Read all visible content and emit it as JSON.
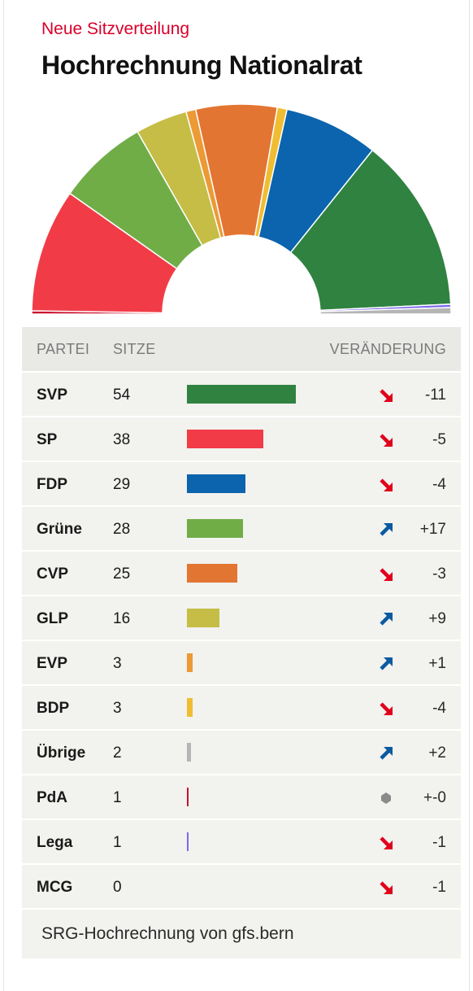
{
  "header": {
    "kicker": "Neue Sitzverteilung",
    "title": "Hochrechnung Nationalrat"
  },
  "table": {
    "col_party": "PARTEI",
    "col_seats": "SITZE",
    "col_change": "VERÄNDERUNG"
  },
  "footer": {
    "source": "SRG-Hochrechnung von gfs.bern"
  },
  "colors": {
    "up_arrow": "#0a5aa0",
    "down_arrow": "#e0001b",
    "neutral": "#8a8a8a"
  },
  "chart_data": {
    "type": "bar",
    "companion_chart": "parliament semicircle (hemicycle), seats arranged left to right",
    "total_seats": 200,
    "series": [
      {
        "name": "Sitze",
        "values": [
          54,
          38,
          29,
          28,
          25,
          16,
          3,
          3,
          2,
          1,
          1,
          0
        ]
      }
    ],
    "rows": [
      {
        "party": "SVP",
        "seats": 54,
        "change": "-11",
        "direction": "down",
        "color": "#2f8240"
      },
      {
        "party": "SP",
        "seats": 38,
        "change": "-5",
        "direction": "down",
        "color": "#f13c47"
      },
      {
        "party": "FDP",
        "seats": 29,
        "change": "-4",
        "direction": "down",
        "color": "#0b64ad"
      },
      {
        "party": "Grüne",
        "seats": 28,
        "change": "+17",
        "direction": "up",
        "color": "#70ad47"
      },
      {
        "party": "CVP",
        "seats": 25,
        "change": "-3",
        "direction": "down",
        "color": "#e37532"
      },
      {
        "party": "GLP",
        "seats": 16,
        "change": "+9",
        "direction": "up",
        "color": "#c5bd45"
      },
      {
        "party": "EVP",
        "seats": 3,
        "change": "+1",
        "direction": "up",
        "color": "#ec9a36"
      },
      {
        "party": "BDP",
        "seats": 3,
        "change": "-4",
        "direction": "down",
        "color": "#f0bd32"
      },
      {
        "party": "Übrige",
        "seats": 2,
        "change": "+2",
        "direction": "up",
        "color": "#b5b5b5"
      },
      {
        "party": "PdA",
        "seats": 1,
        "change": "+-0",
        "direction": "neutral",
        "color": "#c8102e"
      },
      {
        "party": "Lega",
        "seats": 1,
        "change": "-1",
        "direction": "down",
        "color": "#7b68ee"
      },
      {
        "party": "MCG",
        "seats": 0,
        "change": "-1",
        "direction": "down",
        "color": "#b08850"
      }
    ],
    "hemicycle_order": [
      "PdA",
      "SP",
      "Grüne",
      "GLP",
      "EVP",
      "CVP",
      "BDP",
      "FDP",
      "SVP",
      "Lega",
      "Übrige"
    ]
  }
}
